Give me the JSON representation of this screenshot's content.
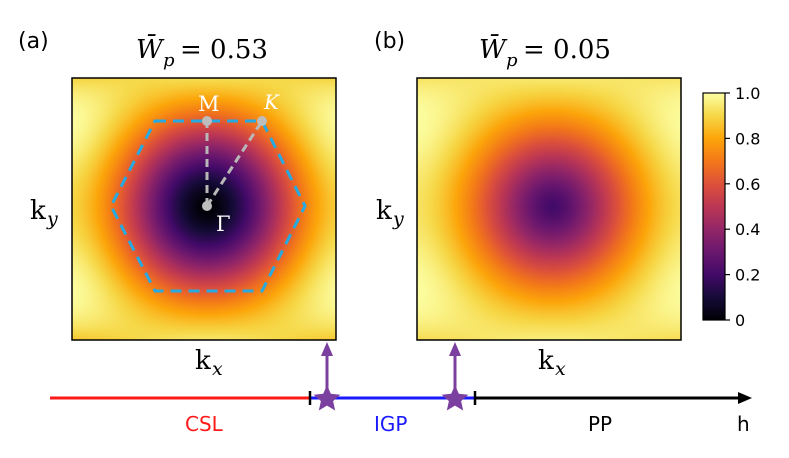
{
  "chart_data": [
    {
      "type": "heatmap",
      "panel_label": "(a)",
      "title_symbol": "W̄",
      "title_subscript": "p",
      "title_value": "= 0.53",
      "xlabel": "k",
      "xlabel_sub": "x",
      "ylabel": "k",
      "ylabel_sub": "y",
      "contrast_w": 0.53,
      "center_value": 0.0,
      "max_value": 1.0,
      "overlay": {
        "brillouin_zone": "hexagon",
        "high_symmetry_points": [
          "M",
          "K",
          "Γ"
        ],
        "paths": [
          "Γ-M",
          "Γ-K"
        ]
      }
    },
    {
      "type": "heatmap",
      "panel_label": "(b)",
      "title_symbol": "W̄",
      "title_subscript": "p",
      "title_value": "= 0.05",
      "xlabel": "k",
      "xlabel_sub": "x",
      "ylabel": "k",
      "ylabel_sub": "y",
      "contrast_w": 0.05,
      "center_value": 0.2,
      "max_value": 1.0
    }
  ],
  "colorbar": {
    "colormap": "inferno",
    "range": [
      0,
      1.0
    ],
    "ticks": [
      "0",
      "0.2",
      "0.4",
      "0.6",
      "0.8",
      "1.0"
    ],
    "tick_values": [
      0,
      0.2,
      0.4,
      0.6,
      0.8,
      1.0
    ]
  },
  "phase_axis": {
    "segments": [
      {
        "label": "CSL",
        "color": "#ff1a1a"
      },
      {
        "label": "IGP",
        "color": "#1a1aff"
      },
      {
        "label": "PP",
        "color": "#000000"
      }
    ],
    "axis_label": "h",
    "marker_color": "#7b3fa0"
  }
}
